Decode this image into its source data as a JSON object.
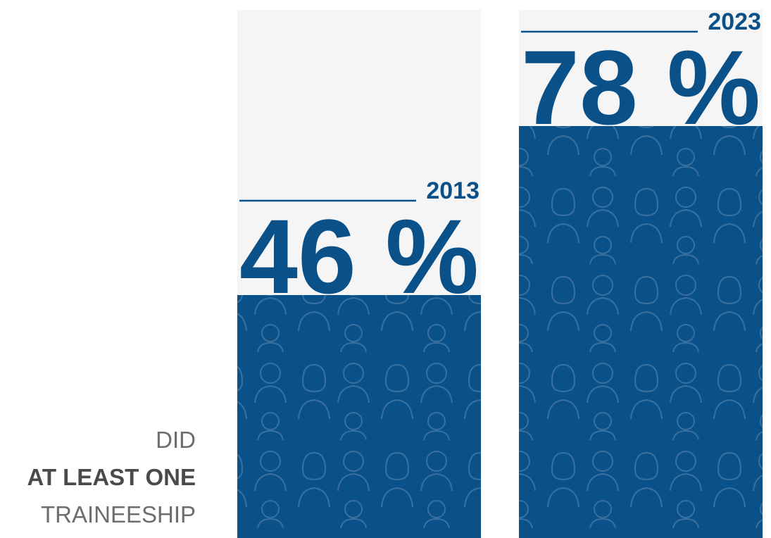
{
  "chart_data": {
    "type": "bar",
    "categories": [
      "2013",
      "2023"
    ],
    "values": [
      46,
      78
    ],
    "value_labels": [
      "46 %",
      "78 %"
    ],
    "color": "#0b5189",
    "track_color": "#f5f5f5",
    "ylim": [
      0,
      100
    ],
    "annotation": [
      "DID",
      "AT LEAST ONE",
      "TRAINEESHIP"
    ]
  }
}
